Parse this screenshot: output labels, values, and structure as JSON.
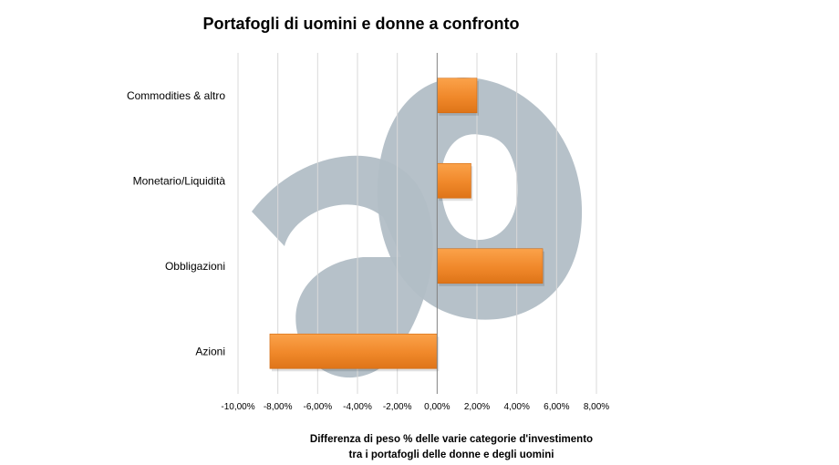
{
  "chart_data": {
    "type": "bar",
    "orientation": "horizontal",
    "title": "Portafogli di uomini e donne a confronto",
    "categories": [
      "Commodities & altro",
      "Monetario/Liquidità",
      "Obbligazioni",
      "Azioni"
    ],
    "values": [
      2.0,
      1.7,
      5.3,
      -8.4
    ],
    "xlim": [
      -10,
      8
    ],
    "xticks": [
      "-10,00%",
      "-8,00%",
      "-6,00%",
      "-4,00%",
      "-2,00%",
      "0,00%",
      "2,00%",
      "4,00%",
      "6,00%",
      "8,00%"
    ],
    "xlabel_lines": [
      "Differenza di peso % delle varie categorie d'investimento",
      "tra i portafogli delle donne e degli uomini"
    ],
    "grid": true,
    "bar_color": "#F0882A"
  },
  "colors": {
    "watermark": "#B2BEC6",
    "grid": "#D9D9D9",
    "axis": "#808080"
  },
  "watermark": {
    "icon": "ao-logo-watermark"
  }
}
